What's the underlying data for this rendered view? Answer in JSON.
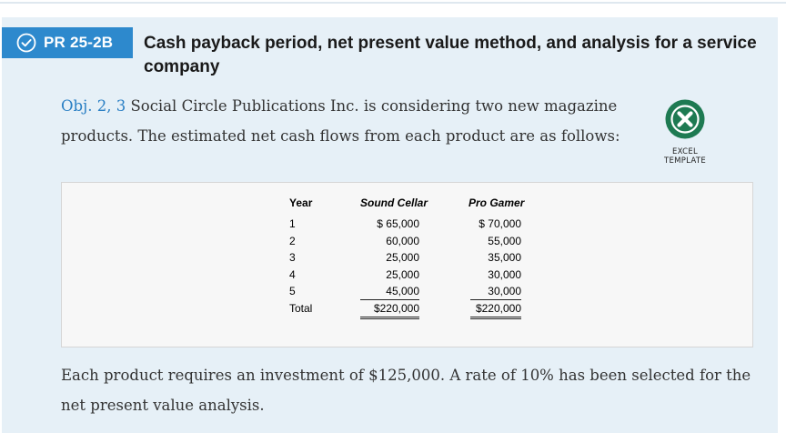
{
  "header": {
    "badge": "PR 25-2B",
    "title": "Cash payback period, net present value method, and analysis for a service company"
  },
  "intro": {
    "obj_label": "Obj.",
    "obj_1": "2",
    "obj_sep": ",",
    "obj_2": "3",
    "text": "Social Circle Publications Inc. is considering two new magazine products. The estimated net cash flows from each product are as follows:"
  },
  "excel": {
    "label": "EXCEL TEMPLATE"
  },
  "table": {
    "headers": {
      "year": "Year",
      "col1": "Sound Cellar",
      "col2": "Pro Gamer"
    },
    "rows": [
      {
        "year": "1",
        "col1": "$ 65,000",
        "col2": "$ 70,000"
      },
      {
        "year": "2",
        "col1": "60,000",
        "col2": "55,000"
      },
      {
        "year": "3",
        "col1": "25,000",
        "col2": "35,000"
      },
      {
        "year": "4",
        "col1": "25,000",
        "col2": "30,000"
      },
      {
        "year": "5",
        "col1": "45,000",
        "col2": "30,000"
      }
    ],
    "total": {
      "label": "Total",
      "col1": "$220,000",
      "col2": "$220,000"
    }
  },
  "outro": {
    "text": "Each product requires an investment of $125,000. A rate of 10% has been selected for the net present value analysis."
  },
  "colors": {
    "accent": "#2d89cd",
    "panel": "#e6f0f7",
    "excel_green": "#1e7a52"
  }
}
